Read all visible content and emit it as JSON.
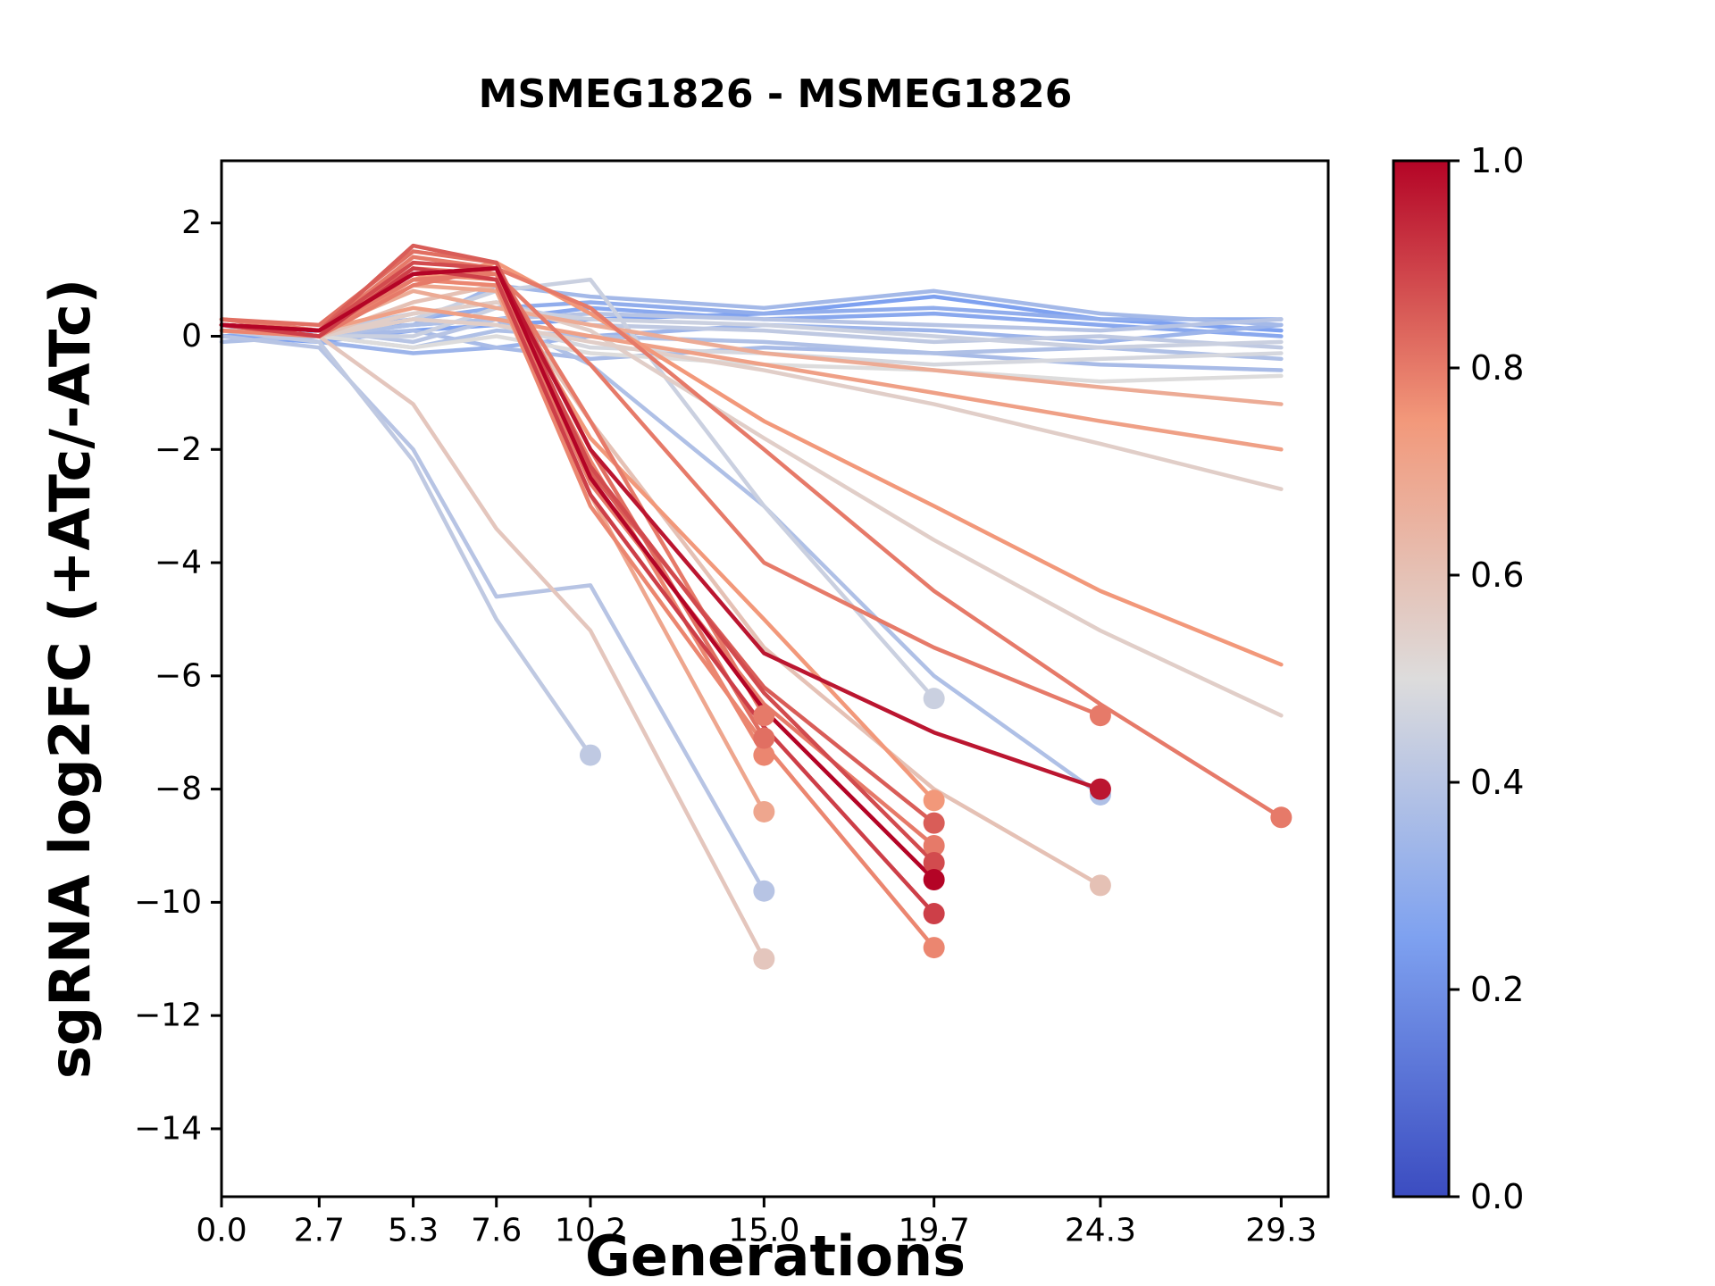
{
  "page": {
    "background": "#ffffff"
  },
  "chart_data": {
    "type": "line",
    "title": "MSMEG1826 - MSMEG1826",
    "xlabel": "Generations",
    "ylabel": "sgRNA log2FC (+ATc/-ATc)",
    "xlim": [
      0,
      30.6
    ],
    "ylim": [
      -15.2,
      3.1
    ],
    "grid": false,
    "x_ticks": {
      "values": [
        0,
        2.7,
        5.3,
        7.6,
        10.2,
        15.0,
        19.7,
        24.3,
        29.3
      ],
      "labels": [
        "0.0",
        "2.7",
        "5.3",
        "7.6",
        "10.2",
        "15.0",
        "19.7",
        "24.3",
        "29.3"
      ]
    },
    "y_ticks": {
      "values": [
        2,
        0,
        -2,
        -4,
        -6,
        -8,
        -10,
        -12,
        -14
      ],
      "labels": [
        "2",
        "0",
        "−2",
        "−4",
        "−6",
        "−8",
        "−10",
        "−12",
        "−14"
      ]
    },
    "colorbar": {
      "min": 0,
      "max": 1,
      "colormap": "coolwarm",
      "anchors": [
        [
          0,
          "#3b4cc0"
        ],
        [
          0.25,
          "#7ea1f0"
        ],
        [
          0.5,
          "#dddcdc"
        ],
        [
          0.75,
          "#f2987a"
        ],
        [
          1,
          "#b40426"
        ]
      ],
      "ticks": {
        "values": [
          0,
          0.2,
          0.4,
          0.6,
          0.8,
          1.0
        ],
        "labels": [
          "0.0",
          "0.2",
          "0.4",
          "0.6",
          "0.8",
          "1.0"
        ]
      }
    },
    "series": [
      {
        "color_value": 0.3,
        "end_marker": false,
        "x": [
          0,
          2.7,
          5.3,
          7.6,
          10.2,
          15.0,
          19.7,
          24.3,
          29.3
        ],
        "y": [
          0.2,
          0.1,
          0.3,
          0.5,
          0.6,
          0.4,
          0.5,
          0.3,
          0.3
        ]
      },
      {
        "color_value": 0.35,
        "end_marker": false,
        "x": [
          0,
          2.7,
          5.3,
          7.6,
          10.2,
          15.0,
          19.7,
          24.3,
          29.3
        ],
        "y": [
          0.1,
          0.0,
          0.2,
          0.9,
          0.7,
          0.5,
          0.8,
          0.4,
          0.2
        ]
      },
      {
        "color_value": 0.4,
        "end_marker": false,
        "x": [
          0,
          2.7,
          5.3,
          7.6,
          10.2,
          15.0,
          19.7,
          24.3,
          29.3
        ],
        "y": [
          0.3,
          0.1,
          -0.1,
          0.3,
          0.4,
          0.3,
          0.2,
          0.1,
          0.3
        ]
      },
      {
        "color_value": 0.25,
        "end_marker": false,
        "x": [
          0,
          2.7,
          5.3,
          7.6,
          10.2,
          15.0,
          19.7,
          24.3,
          29.3
        ],
        "y": [
          0.0,
          -0.1,
          0.1,
          0.2,
          0.3,
          0.4,
          0.7,
          0.3,
          0.1
        ]
      },
      {
        "color_value": 0.45,
        "end_marker": false,
        "x": [
          0,
          2.7,
          5.3,
          7.6,
          10.2,
          15.0,
          19.7,
          24.3,
          29.3
        ],
        "y": [
          0.2,
          0.0,
          0.0,
          0.5,
          0.3,
          0.2,
          0.0,
          -0.2,
          -0.1
        ]
      },
      {
        "color_value": 0.38,
        "end_marker": false,
        "x": [
          0,
          2.7,
          5.3,
          7.6,
          10.2,
          15.0,
          19.7,
          24.3,
          29.3
        ],
        "y": [
          -0.1,
          0.0,
          -0.2,
          0.1,
          0.0,
          -0.1,
          -0.3,
          -0.2,
          -0.4
        ]
      },
      {
        "color_value": 0.42,
        "end_marker": false,
        "x": [
          0,
          2.7,
          5.3,
          7.6,
          10.2,
          15.0,
          19.7,
          24.3,
          29.3
        ],
        "y": [
          0.1,
          0.1,
          0.4,
          0.6,
          0.2,
          0.1,
          -0.1,
          0.0,
          -0.2
        ]
      },
      {
        "color_value": 0.33,
        "end_marker": false,
        "x": [
          0,
          2.7,
          5.3,
          7.6,
          10.2,
          15.0,
          19.7,
          24.3,
          29.3
        ],
        "y": [
          0.2,
          -0.1,
          -0.3,
          -0.2,
          0.0,
          0.2,
          0.1,
          -0.1,
          0.2
        ]
      },
      {
        "color_value": 0.48,
        "end_marker": false,
        "x": [
          0,
          2.7,
          5.3,
          7.6,
          10.2,
          15.0,
          19.7,
          24.3,
          29.3
        ],
        "y": [
          0.1,
          0.0,
          0.3,
          0.2,
          -0.2,
          -0.3,
          -0.5,
          -0.4,
          -0.3
        ]
      },
      {
        "color_value": 0.28,
        "end_marker": false,
        "x": [
          0,
          2.7,
          5.3,
          7.6,
          10.2,
          15.0,
          19.7,
          24.3,
          29.3
        ],
        "y": [
          0.0,
          0.1,
          0.2,
          0.3,
          0.5,
          0.3,
          0.4,
          0.2,
          0.0
        ]
      },
      {
        "color_value": 0.5,
        "end_marker": false,
        "x": [
          0,
          2.7,
          5.3,
          7.6,
          10.2,
          15.0,
          19.7,
          24.3,
          29.3
        ],
        "y": [
          0.2,
          0.0,
          -0.2,
          0.0,
          -0.3,
          -0.5,
          -0.6,
          -0.8,
          -0.7
        ]
      },
      {
        "color_value": 0.36,
        "end_marker": false,
        "x": [
          0,
          2.7,
          5.3,
          7.6,
          10.2,
          15.0,
          19.7,
          24.3,
          29.3
        ],
        "y": [
          0.1,
          0.0,
          0.1,
          -0.2,
          -0.4,
          -0.2,
          -0.3,
          -0.5,
          -0.6
        ]
      },
      {
        "color_value": 0.68,
        "end_marker": false,
        "x": [
          0,
          2.7,
          5.3,
          7.6,
          10.2,
          15.0,
          19.7,
          24.3,
          29.3
        ],
        "y": [
          0.3,
          0.1,
          0.8,
          0.5,
          0.2,
          -0.3,
          -0.6,
          -0.9,
          -1.2
        ]
      },
      {
        "color_value": 0.72,
        "end_marker": false,
        "x": [
          0,
          2.7,
          5.3,
          7.6,
          10.2,
          15.0,
          19.7,
          24.3,
          29.3
        ],
        "y": [
          0.2,
          0.1,
          0.5,
          0.3,
          0.0,
          -0.5,
          -1.0,
          -1.5,
          -2.0
        ]
      },
      {
        "color_value": 0.55,
        "end_marker": false,
        "x": [
          0,
          2.7,
          5.3,
          7.6,
          10.2,
          15.0,
          19.7,
          24.3,
          29.3
        ],
        "y": [
          0.1,
          0.0,
          0.3,
          0.2,
          -0.1,
          -0.6,
          -1.2,
          -1.9,
          -2.7
        ]
      },
      {
        "color_value": 0.75,
        "end_marker": false,
        "x": [
          0,
          2.7,
          5.3,
          7.6,
          10.2,
          15.0,
          19.7,
          24.3,
          29.3
        ],
        "y": [
          0.2,
          0.0,
          1.0,
          1.3,
          0.4,
          -1.5,
          -3.0,
          -4.5,
          -5.8
        ]
      },
      {
        "color_value": 0.55,
        "end_marker": false,
        "x": [
          0,
          2.7,
          5.3,
          7.6,
          10.2,
          15.0,
          19.7,
          24.3,
          29.3
        ],
        "y": [
          0.1,
          0.0,
          0.4,
          0.6,
          0.1,
          -1.8,
          -3.6,
          -5.2,
          -6.7
        ]
      },
      {
        "color_value": 0.42,
        "end_marker": true,
        "x": [
          0,
          2.7,
          5.3,
          7.6,
          10.2
        ],
        "y": [
          0.1,
          -0.1,
          -2.2,
          -5.0,
          -7.4
        ]
      },
      {
        "color_value": 0.4,
        "end_marker": true,
        "x": [
          0,
          2.7,
          5.3,
          7.6,
          10.2,
          15.0
        ],
        "y": [
          0.0,
          -0.2,
          -2.0,
          -4.6,
          -4.4,
          -9.8
        ]
      },
      {
        "color_value": 0.58,
        "end_marker": true,
        "x": [
          0,
          2.7,
          5.3,
          7.6,
          10.2,
          15.0
        ],
        "y": [
          0.1,
          0.0,
          -1.2,
          -3.4,
          -5.2,
          -11.0
        ]
      },
      {
        "color_value": 0.8,
        "end_marker": true,
        "x": [
          0,
          2.7,
          5.3,
          7.6,
          10.2,
          15.0
        ],
        "y": [
          0.2,
          0.1,
          1.4,
          1.2,
          -1.5,
          -6.7
        ]
      },
      {
        "color_value": 0.82,
        "end_marker": true,
        "x": [
          0,
          2.7,
          5.3,
          7.6,
          10.2,
          15.0
        ],
        "y": [
          0.3,
          0.2,
          1.5,
          1.3,
          -2.0,
          -7.1
        ]
      },
      {
        "color_value": 0.78,
        "end_marker": true,
        "x": [
          0,
          2.7,
          5.3,
          7.6,
          10.2,
          15.0
        ],
        "y": [
          0.2,
          0.0,
          1.2,
          1.0,
          -2.2,
          -7.4
        ]
      },
      {
        "color_value": 0.7,
        "end_marker": true,
        "x": [
          0,
          2.7,
          5.3,
          7.6,
          10.2,
          15.0
        ],
        "y": [
          0.1,
          0.0,
          0.9,
          0.8,
          -2.8,
          -8.4
        ]
      },
      {
        "color_value": 0.45,
        "end_marker": true,
        "x": [
          0,
          2.7,
          5.3,
          7.6,
          10.2,
          15.0,
          19.7
        ],
        "y": [
          0.1,
          0.0,
          0.3,
          0.8,
          1.0,
          -3.0,
          -6.4
        ]
      },
      {
        "color_value": 0.75,
        "end_marker": true,
        "x": [
          0,
          2.7,
          5.3,
          7.6,
          10.2,
          15.0,
          19.7
        ],
        "y": [
          0.2,
          0.1,
          1.1,
          1.0,
          -1.8,
          -5.0,
          -8.2
        ]
      },
      {
        "color_value": 0.85,
        "end_marker": true,
        "x": [
          0,
          2.7,
          5.3,
          7.6,
          10.2,
          15.0,
          19.7
        ],
        "y": [
          0.2,
          0.1,
          1.6,
          1.3,
          -2.4,
          -6.2,
          -8.6
        ]
      },
      {
        "color_value": 0.8,
        "end_marker": true,
        "x": [
          0,
          2.7,
          5.3,
          7.6,
          10.2,
          15.0,
          19.7
        ],
        "y": [
          0.3,
          0.1,
          1.2,
          1.1,
          -2.6,
          -6.5,
          -9.0
        ]
      },
      {
        "color_value": 0.88,
        "end_marker": true,
        "x": [
          0,
          2.7,
          5.3,
          7.6,
          10.2,
          15.0,
          19.7
        ],
        "y": [
          0.2,
          0.1,
          1.3,
          1.2,
          -2.3,
          -6.3,
          -9.3
        ]
      },
      {
        "color_value": 1.0,
        "end_marker": true,
        "x": [
          0,
          2.7,
          5.3,
          7.6,
          10.2,
          15.0,
          19.7
        ],
        "y": [
          0.2,
          0.1,
          1.1,
          1.2,
          -2.5,
          -6.6,
          -9.6
        ]
      },
      {
        "color_value": 0.9,
        "end_marker": true,
        "x": [
          0,
          2.7,
          5.3,
          7.6,
          10.2,
          15.0,
          19.7
        ],
        "y": [
          0.2,
          0.0,
          1.2,
          1.0,
          -2.8,
          -6.9,
          -10.2
        ]
      },
      {
        "color_value": 0.78,
        "end_marker": true,
        "x": [
          0,
          2.7,
          5.3,
          7.6,
          10.2,
          15.0,
          19.7
        ],
        "y": [
          0.1,
          0.0,
          1.0,
          0.9,
          -3.0,
          -7.2,
          -10.8
        ]
      },
      {
        "color_value": 0.8,
        "end_marker": true,
        "x": [
          0,
          2.7,
          5.3,
          7.6,
          10.2,
          15.0,
          19.7,
          24.3
        ],
        "y": [
          0.2,
          0.1,
          1.0,
          1.1,
          -0.5,
          -4.0,
          -5.5,
          -6.7
        ]
      },
      {
        "color_value": 0.97,
        "end_marker": true,
        "x": [
          0,
          2.7,
          5.3,
          7.6,
          10.2,
          15.0,
          19.7,
          24.3
        ],
        "y": [
          0.2,
          0.1,
          1.1,
          1.2,
          -2.0,
          -5.6,
          -7.0,
          -8.0
        ]
      },
      {
        "color_value": 0.38,
        "end_marker": true,
        "x": [
          0,
          2.7,
          5.3,
          7.6,
          10.2,
          15.0,
          19.7,
          24.3
        ],
        "y": [
          0.1,
          0.0,
          0.2,
          0.3,
          -0.5,
          -3.0,
          -6.0,
          -8.1
        ]
      },
      {
        "color_value": 0.6,
        "end_marker": true,
        "x": [
          0,
          2.7,
          5.3,
          7.6,
          10.2,
          15.0,
          19.7,
          24.3
        ],
        "y": [
          0.1,
          0.0,
          0.6,
          0.9,
          -1.5,
          -5.5,
          -8.0,
          -9.7
        ]
      },
      {
        "color_value": 0.8,
        "end_marker": true,
        "x": [
          0,
          2.7,
          5.3,
          7.6,
          10.2,
          15.0,
          19.7,
          24.3,
          29.3
        ],
        "y": [
          0.2,
          0.0,
          0.9,
          1.2,
          0.5,
          -2.0,
          -4.5,
          -6.5,
          -8.5
        ]
      }
    ]
  }
}
